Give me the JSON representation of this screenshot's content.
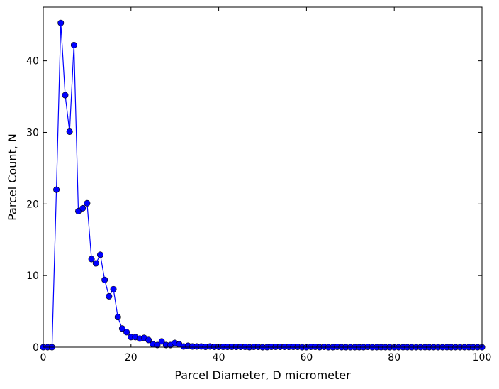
{
  "chart_data": {
    "type": "line",
    "title": "",
    "xlabel": "Parcel Diameter, D micrometer",
    "ylabel": "Parcel Count, N",
    "xlim": [
      0,
      100
    ],
    "ylim": [
      0,
      47.5
    ],
    "xticks": [
      0,
      20,
      40,
      60,
      80,
      100
    ],
    "yticks": [
      0,
      10,
      20,
      30,
      40
    ],
    "grid": false,
    "legend": "none",
    "series": [
      {
        "color": "#0000ff",
        "marker": "circle",
        "x": [
          0,
          1,
          2,
          3,
          4,
          5,
          6,
          7,
          8,
          9,
          10,
          11,
          12,
          13,
          14,
          15,
          16,
          17,
          18,
          19,
          20,
          21,
          22,
          23,
          24,
          25,
          26,
          27,
          28,
          29,
          30,
          31,
          32,
          33,
          34,
          35,
          36,
          37,
          38,
          39,
          40,
          41,
          42,
          43,
          44,
          45,
          46,
          47,
          48,
          49,
          50,
          51,
          52,
          53,
          54,
          55,
          56,
          57,
          58,
          59,
          60,
          61,
          62,
          63,
          64,
          65,
          66,
          67,
          68,
          69,
          70,
          71,
          72,
          73,
          74,
          75,
          76,
          77,
          78,
          79,
          80,
          81,
          82,
          83,
          84,
          85,
          86,
          87,
          88,
          89,
          90,
          91,
          92,
          93,
          94,
          95,
          96,
          97,
          98,
          99,
          100
        ],
        "y": [
          0,
          0,
          0,
          22,
          45.3,
          35.2,
          30.1,
          42.2,
          19,
          19.4,
          20.1,
          12.3,
          11.7,
          12.9,
          9.4,
          7.1,
          8.1,
          4.2,
          2.6,
          2.1,
          1.4,
          1.4,
          1.2,
          1.3,
          1,
          0.4,
          0.3,
          0.8,
          0.3,
          0.3,
          0.6,
          0.4,
          0.1,
          0.2,
          0.1,
          0.1,
          0.1,
          0.05,
          0.1,
          0.05,
          0.05,
          0.05,
          0.05,
          0.05,
          0.05,
          0.05,
          0.05,
          0,
          0.05,
          0.05,
          0,
          0,
          0.05,
          0.05,
          0.05,
          0.05,
          0.05,
          0.05,
          0.05,
          0,
          0,
          0.05,
          0.05,
          0,
          0.05,
          0,
          0,
          0.05,
          0,
          0,
          0,
          0,
          0,
          0,
          0.05,
          0,
          0,
          0,
          0,
          0,
          0,
          0,
          0,
          0,
          0,
          0,
          0,
          0,
          0,
          0,
          0,
          0,
          0,
          0,
          0,
          0,
          0,
          0,
          0,
          0,
          0
        ]
      }
    ]
  }
}
